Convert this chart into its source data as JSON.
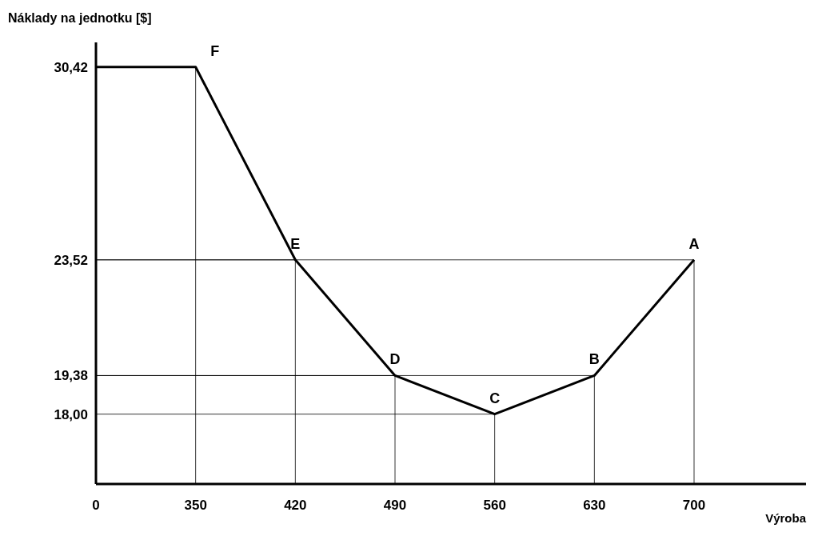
{
  "chart_data": {
    "type": "line",
    "xlabel": "Výroba",
    "ylabel": "Náklady na jednotku [$]",
    "categories": [
      "0",
      "350",
      "420",
      "490",
      "560",
      "630",
      "700"
    ],
    "series": [
      {
        "color": "#000000",
        "values": [
          30.42,
          30.42,
          23.52,
          19.38,
          18.0,
          19.38,
          23.52
        ]
      }
    ],
    "ylim": [
      15.5,
      31.3
    ],
    "yticks": [
      {
        "value": 18.0,
        "label": "18,00"
      },
      {
        "value": 19.38,
        "label": "19,38"
      },
      {
        "value": 23.52,
        "label": "23,52"
      },
      {
        "value": 30.42,
        "label": "30,42"
      }
    ],
    "grid": true,
    "marker": "none",
    "line_style": "solid",
    "annotations": [
      {
        "text": "F",
        "x": "350",
        "y": 30.42
      },
      {
        "text": "E",
        "x": "420",
        "y": 23.52
      },
      {
        "text": "D",
        "x": "490",
        "y": 19.38
      },
      {
        "text": "C",
        "x": "560",
        "y": 18.0
      },
      {
        "text": "B",
        "x": "630",
        "y": 19.38
      },
      {
        "text": "A",
        "x": "700",
        "y": 23.52
      }
    ]
  }
}
